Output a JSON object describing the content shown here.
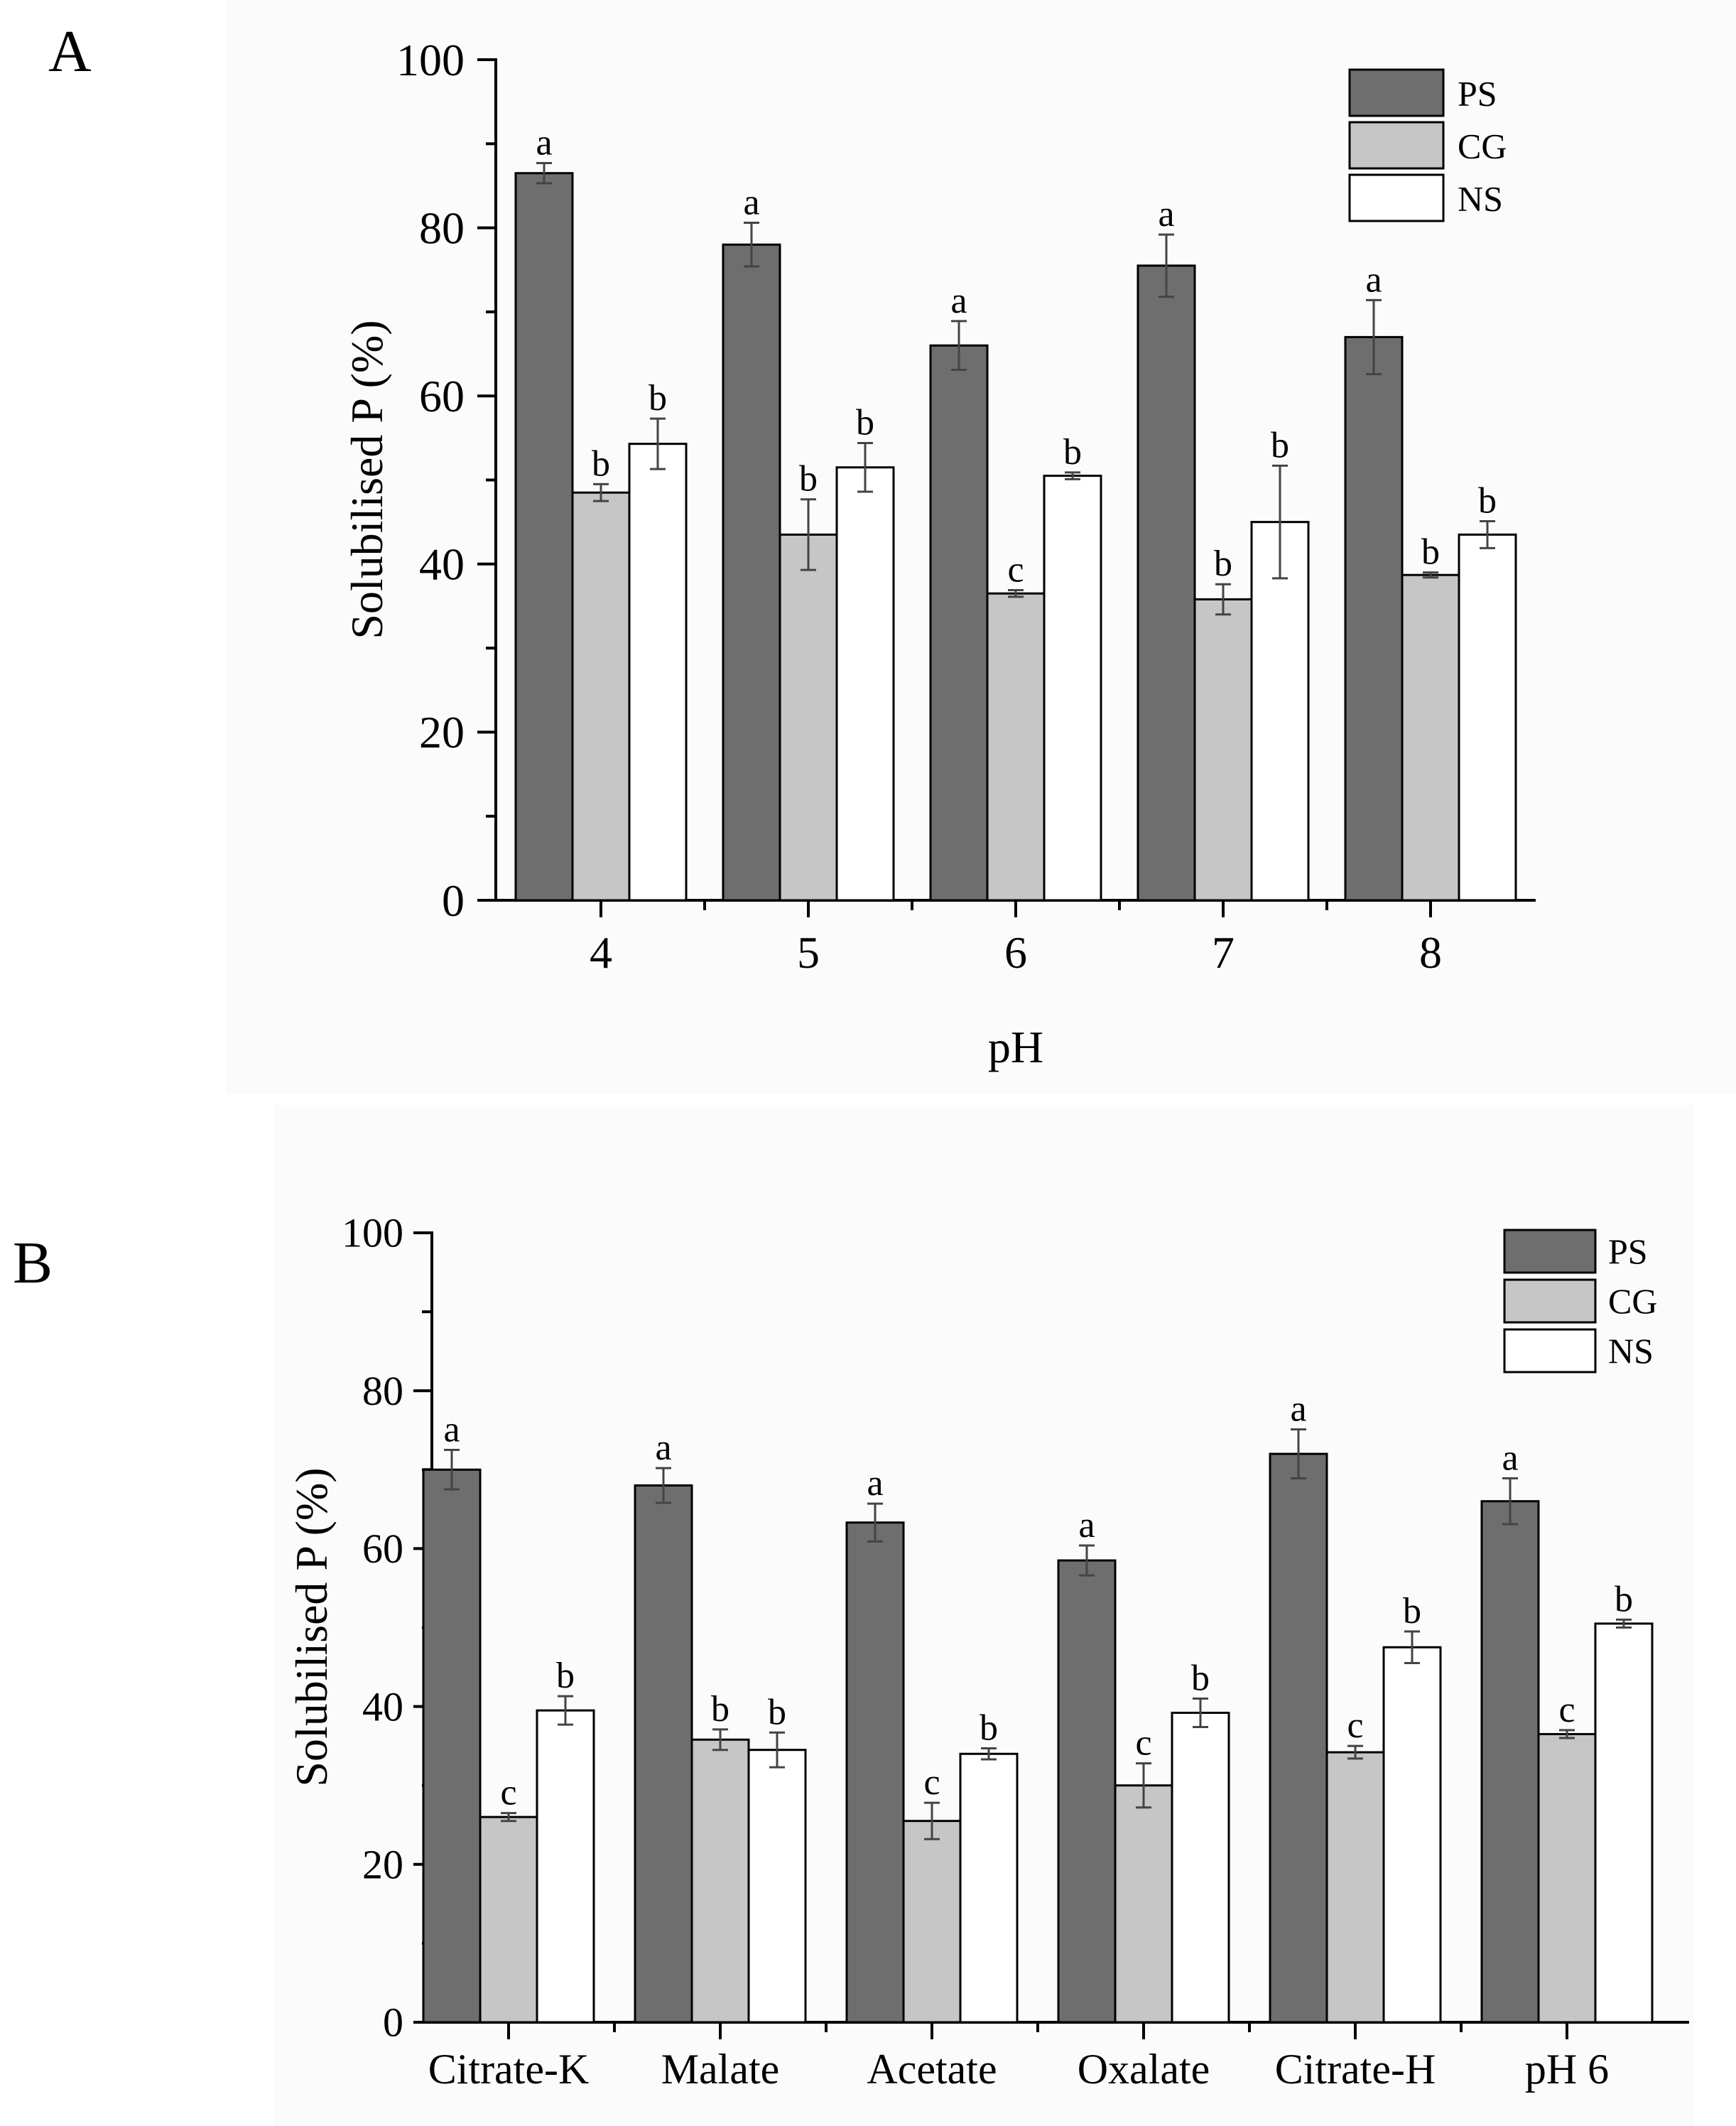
{
  "colors": {
    "PS": "#6e6e6e",
    "CG": "#c6c6c6",
    "NS": "#ffffff"
  },
  "chart_data": [
    {
      "panel": "A",
      "type": "bar",
      "xlabel": "pH",
      "ylabel": "Solubilised P (%)",
      "ylim": [
        0,
        100
      ],
      "yticks": [
        0,
        20,
        40,
        60,
        80,
        100
      ],
      "legend_position": "top-right",
      "categories": [
        "4",
        "5",
        "6",
        "7",
        "8"
      ],
      "series": [
        {
          "name": "PS",
          "values": [
            86.5,
            78.0,
            66.0,
            75.5,
            67.0
          ],
          "errors": [
            1.2,
            2.6,
            2.9,
            3.7,
            4.4
          ],
          "labels": [
            "a",
            "a",
            "a",
            "a",
            "a"
          ]
        },
        {
          "name": "CG",
          "values": [
            48.5,
            43.5,
            36.5,
            35.8,
            38.7
          ],
          "errors": [
            1.0,
            4.2,
            0.4,
            1.8,
            0.3
          ],
          "labels": [
            "b",
            "b",
            "c",
            "b",
            "b"
          ]
        },
        {
          "name": "NS",
          "values": [
            54.3,
            51.5,
            50.5,
            45.0,
            43.5
          ],
          "errors": [
            3.0,
            2.9,
            0.4,
            6.7,
            1.6
          ],
          "labels": [
            "b",
            "b",
            "b",
            "b",
            "b"
          ]
        }
      ]
    },
    {
      "panel": "B",
      "type": "bar",
      "xlabel": "",
      "ylabel": "Solubilised P (%)",
      "ylim": [
        0,
        100
      ],
      "yticks": [
        0,
        20,
        40,
        60,
        80,
        100
      ],
      "legend_position": "top-right",
      "categories": [
        "Citrate-K",
        "Malate",
        "Acetate",
        "Oxalate",
        "Citrate-H",
        "pH 6"
      ],
      "series": [
        {
          "name": "PS",
          "values": [
            70.0,
            68.0,
            63.3,
            58.5,
            72.0,
            66.0
          ],
          "errors": [
            2.5,
            2.2,
            2.4,
            1.9,
            3.1,
            2.9
          ],
          "labels": [
            "a",
            "a",
            "a",
            "a",
            "a",
            "a"
          ]
        },
        {
          "name": "CG",
          "values": [
            26.0,
            35.8,
            25.5,
            30.0,
            34.2,
            36.5
          ],
          "errors": [
            0.5,
            1.3,
            2.3,
            2.8,
            0.8,
            0.5
          ],
          "labels": [
            "c",
            "b",
            "c",
            "c",
            "c",
            "c"
          ]
        },
        {
          "name": "NS",
          "values": [
            39.5,
            34.5,
            34.0,
            39.2,
            47.5,
            50.5
          ],
          "errors": [
            1.8,
            2.2,
            0.7,
            1.8,
            2.0,
            0.5
          ],
          "labels": [
            "b",
            "b",
            "b",
            "b",
            "b",
            "b"
          ]
        }
      ]
    }
  ]
}
